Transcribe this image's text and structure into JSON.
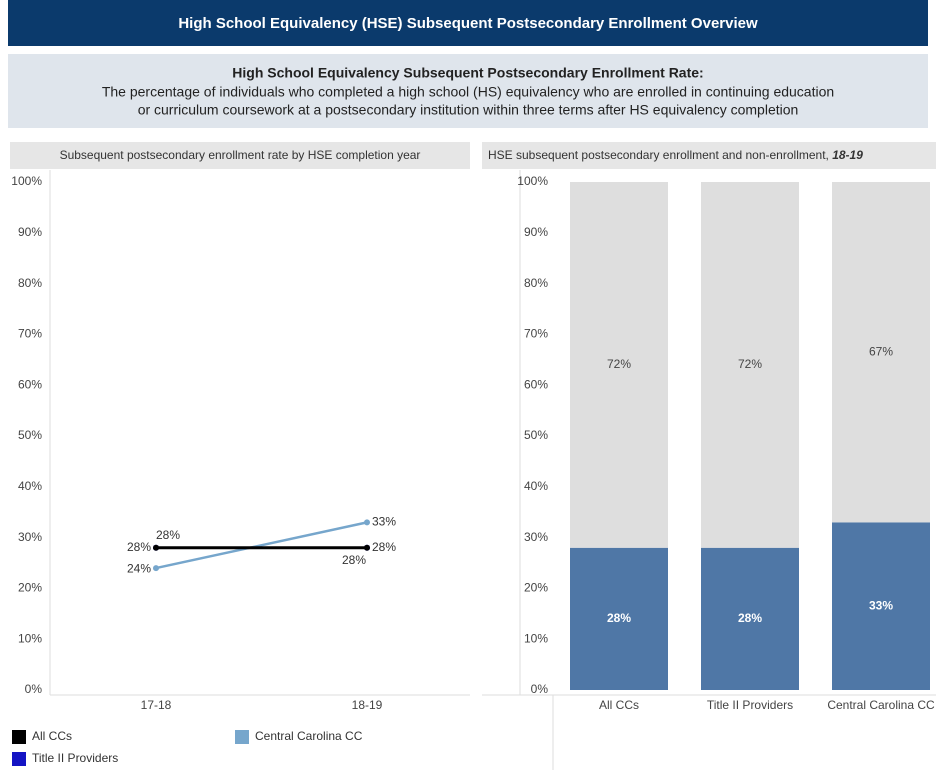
{
  "header": {
    "title": "High School Equivalency (HSE) Subsequent Postsecondary Enrollment Overview"
  },
  "definition": {
    "title": "High School Equivalency Subsequent Postsecondary Enrollment Rate:",
    "lines": [
      "The percentage of individuals who completed a high school (HS) equivalency who are enrolled in continuing education",
      "or curriculum coursework at a postsecondary institution within three terms after HS equivalency completion"
    ]
  },
  "chart_data": [
    {
      "type": "line",
      "title": "Subsequent postsecondary enrollment rate by HSE completion year",
      "categories": [
        "17-18",
        "18-19"
      ],
      "ylim": [
        0,
        100
      ],
      "yticks": [
        {
          "value": 0,
          "label": "0%"
        },
        {
          "value": 10,
          "label": "10%"
        },
        {
          "value": 20,
          "label": "20%"
        },
        {
          "value": 30,
          "label": "30%"
        },
        {
          "value": 40,
          "label": "40%"
        },
        {
          "value": 50,
          "label": "50%"
        },
        {
          "value": 60,
          "label": "60%"
        },
        {
          "value": 70,
          "label": "70%"
        },
        {
          "value": 80,
          "label": "80%"
        },
        {
          "value": 90,
          "label": "90%"
        },
        {
          "value": 100,
          "label": "100%"
        }
      ],
      "series": [
        {
          "name": "All CCs",
          "color": "#000000",
          "values": [
            28,
            28
          ],
          "value_labels": [
            "28%",
            "28%"
          ]
        },
        {
          "name": "Title II Providers",
          "color": "#1414c4",
          "values": [
            28,
            28
          ],
          "value_labels": [
            "28%",
            "28%"
          ]
        },
        {
          "name": "Central Carolina CC",
          "color": "#76a6cc",
          "values": [
            24,
            33
          ],
          "value_labels": [
            "24%",
            "33%"
          ]
        }
      ]
    },
    {
      "type": "stacked_bar",
      "title": "HSE subsequent postsecondary enrollment and non-enrollment, ",
      "title_emphasis": "18-19",
      "categories": [
        "All CCs",
        "Title II Providers",
        "Central Carolina CC"
      ],
      "ylim": [
        0,
        100
      ],
      "yticks": [
        {
          "value": 0,
          "label": "0%"
        },
        {
          "value": 10,
          "label": "10%"
        },
        {
          "value": 20,
          "label": "20%"
        },
        {
          "value": 30,
          "label": "30%"
        },
        {
          "value": 40,
          "label": "40%"
        },
        {
          "value": 50,
          "label": "50%"
        },
        {
          "value": 60,
          "label": "60%"
        },
        {
          "value": 70,
          "label": "70%"
        },
        {
          "value": 80,
          "label": "80%"
        },
        {
          "value": 90,
          "label": "90%"
        },
        {
          "value": 100,
          "label": "100%"
        }
      ],
      "series": [
        {
          "color": "#4f77a6",
          "values": [
            28,
            28,
            33
          ],
          "value_labels": [
            "28%",
            "28%",
            "33%"
          ]
        },
        {
          "color": "#dedede",
          "values": [
            72,
            72,
            67
          ],
          "value_labels": [
            "72%",
            "72%",
            "67%"
          ]
        }
      ]
    }
  ]
}
